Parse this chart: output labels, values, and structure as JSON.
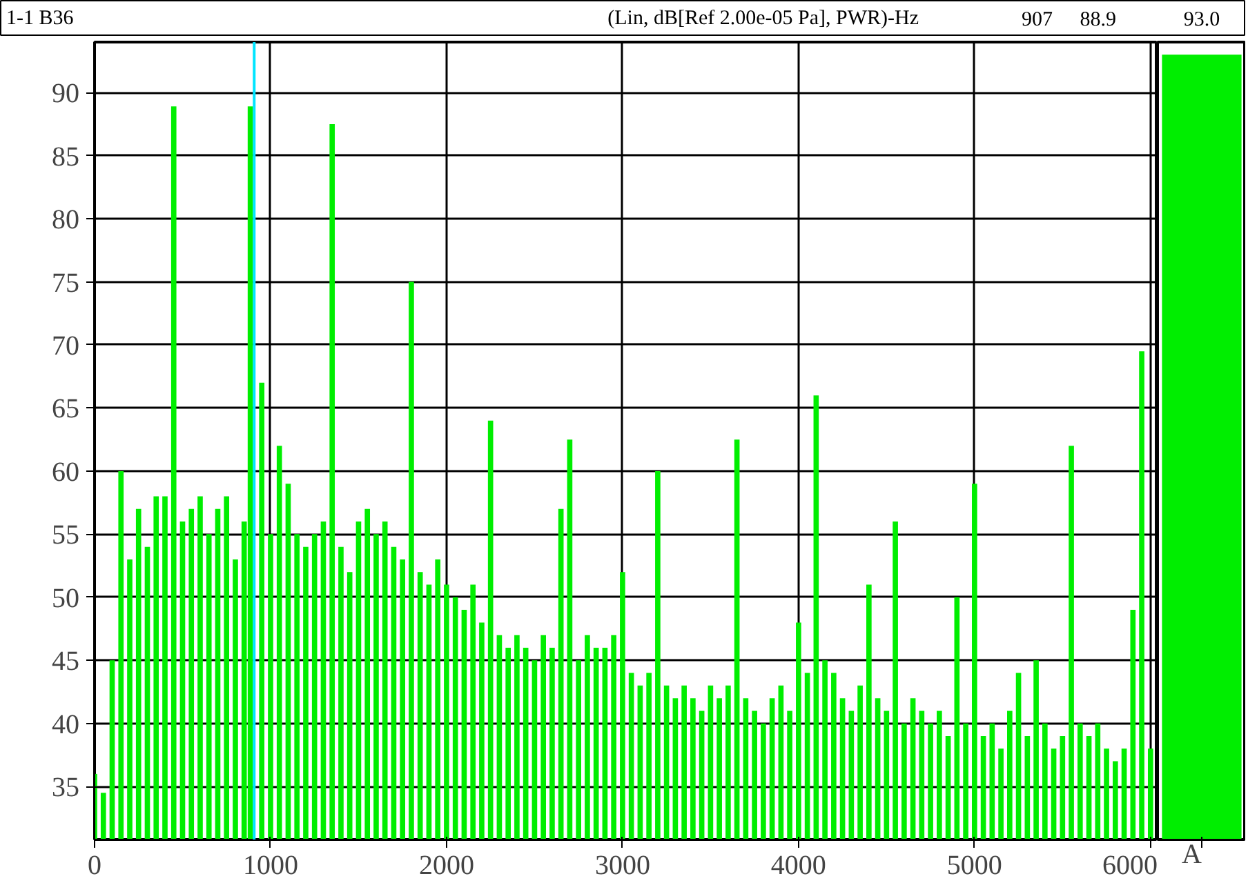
{
  "chart_data": [
    {
      "type": "bar",
      "title": "1-1 B36",
      "subtitle": "(Lin, dB[Ref 2.00e-05 Pa], PWR)-Hz",
      "color": "#00ee00",
      "x": [
        0,
        50,
        100,
        150,
        200,
        250,
        300,
        350,
        400,
        450,
        500,
        550,
        600,
        650,
        700,
        750,
        800,
        850,
        885,
        950,
        1000,
        1050,
        1100,
        1150,
        1200,
        1250,
        1300,
        1350,
        1400,
        1450,
        1500,
        1550,
        1600,
        1650,
        1700,
        1750,
        1800,
        1850,
        1900,
        1950,
        2000,
        2050,
        2100,
        2150,
        2200,
        2250,
        2300,
        2350,
        2400,
        2450,
        2500,
        2550,
        2600,
        2650,
        2700,
        2750,
        2800,
        2850,
        2900,
        2950,
        3000,
        3050,
        3100,
        3150,
        3200,
        3250,
        3300,
        3350,
        3400,
        3450,
        3500,
        3550,
        3600,
        3650,
        3700,
        3750,
        3800,
        3850,
        3900,
        3950,
        4000,
        4050,
        4100,
        4150,
        4200,
        4250,
        4300,
        4350,
        4400,
        4450,
        4500,
        4550,
        4600,
        4650,
        4700,
        4750,
        4800,
        4850,
        4900,
        4950,
        5000,
        5050,
        5100,
        5150,
        5200,
        5250,
        5300,
        5350,
        5400,
        5450,
        5500,
        5550,
        5600,
        5650,
        5700,
        5750,
        5800,
        5850,
        5900,
        5950,
        6000
      ],
      "values": [
        36,
        34.5,
        45,
        60,
        53,
        57,
        54,
        58,
        58,
        88.9,
        56,
        57,
        58,
        55,
        57,
        58,
        53,
        56,
        88.9,
        67,
        55,
        62,
        59,
        55,
        54,
        55,
        56,
        87.5,
        54,
        52,
        56,
        57,
        55,
        56,
        54,
        53,
        75,
        52,
        51,
        53,
        51,
        50,
        49,
        51,
        48,
        64,
        47,
        46,
        47,
        46,
        45,
        47,
        46,
        57,
        62.5,
        45,
        47,
        46,
        46,
        47,
        52,
        44,
        43,
        44,
        60,
        43,
        42,
        43,
        42,
        41,
        43,
        42,
        43,
        62.5,
        42,
        41,
        40,
        42,
        43,
        41,
        48,
        44,
        66,
        45,
        44,
        42,
        41,
        43,
        51,
        42,
        41,
        56,
        40,
        42,
        41,
        40,
        41,
        39,
        50,
        40,
        59,
        39,
        40,
        38,
        41,
        44,
        39,
        45,
        40,
        38,
        39,
        62,
        40,
        39,
        40,
        38,
        37,
        38,
        49,
        69.5,
        38
      ],
      "xlim": [
        0,
        6040
      ],
      "ylim": [
        30.8,
        94
      ],
      "xticks": [
        0,
        1000,
        2000,
        3000,
        4000,
        5000,
        6000
      ],
      "yticks": [
        35,
        40,
        45,
        50,
        55,
        60,
        65,
        70,
        75,
        80,
        85,
        90
      ],
      "grid": true,
      "ref_lines": [
        {
          "axis": "x",
          "value": 907,
          "color": "#00e5ff"
        }
      ],
      "annotations": [
        "907",
        "88.9"
      ]
    },
    {
      "type": "bar",
      "categories": [
        "A"
      ],
      "values": [
        93.0
      ],
      "value_labels": [
        "93.0"
      ],
      "color": "#00ee00",
      "ylim": [
        30.8,
        94
      ],
      "yticks": [
        35,
        40,
        45,
        50,
        55,
        60,
        65,
        70,
        75,
        80,
        85,
        90
      ],
      "tick_labels": "x"
    }
  ]
}
